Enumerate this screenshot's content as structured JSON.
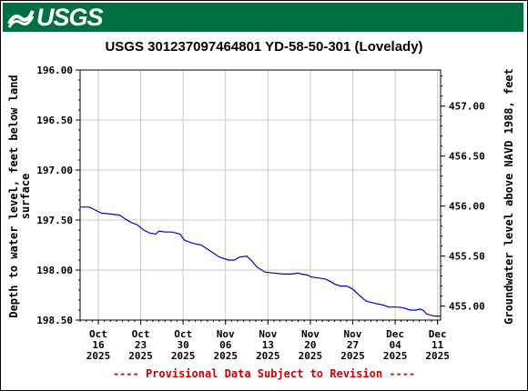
{
  "header": {
    "logo_text": "USGS",
    "brand_color": "#006f41"
  },
  "footer": {
    "note": "---- Provisional Data Subject to Revision ----",
    "note_color": "#cc0000"
  },
  "chart_data": {
    "type": "line",
    "title": "USGS 301237097464801 YD-58-50-301 (Lovelady)",
    "ylabel_left_line1": "Depth to water level, feet below land",
    "ylabel_left_line2": "surface",
    "ylabel_right": "Groundwater level above NAVD 1988, feet",
    "left_axis": {
      "min": 196.0,
      "max": 198.5,
      "inverted": true,
      "ticks": [
        196.0,
        196.5,
        197.0,
        197.5,
        198.0,
        198.5
      ],
      "tick_labels": [
        "196.00",
        "196.50",
        "197.00",
        "197.50",
        "198.00",
        "198.50"
      ]
    },
    "right_axis": {
      "ticks": [
        457.0,
        456.5,
        456.0,
        455.5,
        455.0
      ],
      "tick_labels": [
        "457.00",
        "456.50",
        "456.00",
        "455.50",
        "455.00"
      ],
      "datum_offset": 653.36
    },
    "x_axis": {
      "start_day": 0,
      "end_day": 59,
      "ticks": [
        {
          "day": 3,
          "line1": "Oct",
          "line2": "16",
          "line3": "2025"
        },
        {
          "day": 10,
          "line1": "Oct",
          "line2": "23",
          "line3": "2025"
        },
        {
          "day": 17,
          "line1": "Oct",
          "line2": "30",
          "line3": "2025"
        },
        {
          "day": 24,
          "line1": "Nov",
          "line2": "06",
          "line3": "2025"
        },
        {
          "day": 31,
          "line1": "Nov",
          "line2": "13",
          "line3": "2025"
        },
        {
          "day": 38,
          "line1": "Nov",
          "line2": "20",
          "line3": "2025"
        },
        {
          "day": 45,
          "line1": "Nov",
          "line2": "27",
          "line3": "2025"
        },
        {
          "day": 52,
          "line1": "Dec",
          "line2": "04",
          "line3": "2025"
        },
        {
          "day": 59,
          "line1": "Dec",
          "line2": "11",
          "line3": "2025"
        }
      ]
    },
    "grid": true,
    "line_color": "#0000cc",
    "series": [
      {
        "x": [
          0,
          1.5,
          2.5,
          3.5,
          5,
          6.5,
          7.2,
          8.3,
          9.5,
          10.5,
          11.5,
          12.5,
          13,
          14,
          15.2,
          16.5,
          17.2,
          18.5,
          20,
          21.5,
          23,
          24.5,
          25.5,
          26.3,
          27.5,
          28.2,
          29.2,
          30.5,
          32,
          33.5,
          35,
          36,
          36.5,
          37.5,
          38.2,
          39.5,
          40.5,
          41.5,
          42,
          43,
          44,
          45,
          46.2,
          47.2,
          48.5,
          50,
          51,
          52.5,
          53.5,
          54.5,
          55.5,
          56,
          56.6,
          57.2,
          58.5,
          59.5
        ],
        "y": [
          197.37,
          197.37,
          197.4,
          197.43,
          197.44,
          197.45,
          197.48,
          197.52,
          197.55,
          197.6,
          197.63,
          197.64,
          197.61,
          197.62,
          197.62,
          197.64,
          197.7,
          197.73,
          197.75,
          197.81,
          197.87,
          197.9,
          197.9,
          197.87,
          197.86,
          197.9,
          197.97,
          198.02,
          198.03,
          198.04,
          198.04,
          198.03,
          198.04,
          198.05,
          198.07,
          198.08,
          198.09,
          198.12,
          198.14,
          198.16,
          198.16,
          198.19,
          198.26,
          198.31,
          198.33,
          198.35,
          198.37,
          198.37,
          198.38,
          198.4,
          198.4,
          198.39,
          198.4,
          198.44,
          198.46,
          198.46
        ]
      }
    ]
  }
}
